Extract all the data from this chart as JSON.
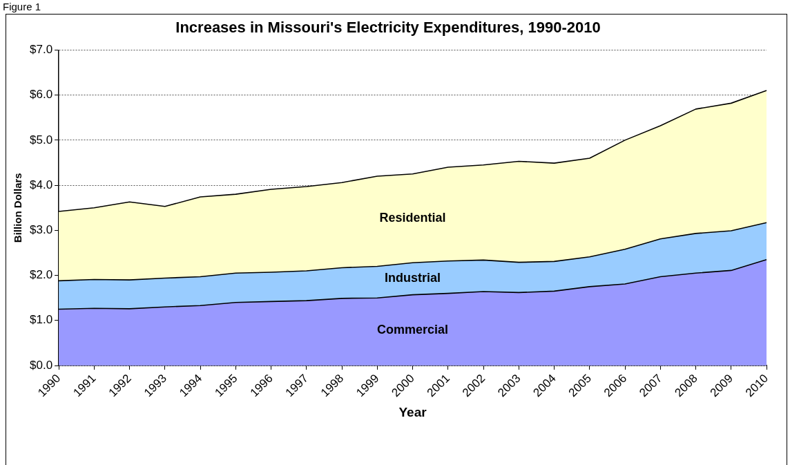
{
  "chart_data": {
    "type": "area",
    "stacked": true,
    "title": "Increases in Missouri's Electricity Expenditures, 1990-2010",
    "xlabel": "Year",
    "ylabel": "Billion Dollars",
    "annotations": [
      "Figure 1"
    ],
    "categories": [
      "1990",
      "1991",
      "1992",
      "1993",
      "1994",
      "1995",
      "1996",
      "1997",
      "1998",
      "1999",
      "2000",
      "2001",
      "2002",
      "2003",
      "2004",
      "2005",
      "2006",
      "2007",
      "2008",
      "2009",
      "2010"
    ],
    "series": [
      {
        "name": "Commercial",
        "color": "#9999ff",
        "values": [
          1.25,
          1.27,
          1.26,
          1.3,
          1.33,
          1.4,
          1.42,
          1.44,
          1.49,
          1.5,
          1.57,
          1.6,
          1.64,
          1.62,
          1.65,
          1.75,
          1.81,
          1.97,
          2.05,
          2.11,
          2.35
        ]
      },
      {
        "name": "Industrial",
        "color": "#99ccff",
        "values": [
          0.63,
          0.64,
          0.64,
          0.64,
          0.64,
          0.65,
          0.65,
          0.66,
          0.68,
          0.7,
          0.71,
          0.72,
          0.7,
          0.67,
          0.66,
          0.66,
          0.77,
          0.84,
          0.88,
          0.88,
          0.82
        ]
      },
      {
        "name": "Residential",
        "color": "#ffffcc",
        "values": [
          1.54,
          1.59,
          1.73,
          1.59,
          1.77,
          1.75,
          1.84,
          1.87,
          1.89,
          2.0,
          1.97,
          2.08,
          2.11,
          2.24,
          2.18,
          2.19,
          2.42,
          2.51,
          2.76,
          2.83,
          2.93
        ]
      }
    ],
    "ylim": [
      0,
      7
    ],
    "yticks": [
      {
        "value": 0,
        "label": "$0.0"
      },
      {
        "value": 1,
        "label": "$1.0"
      },
      {
        "value": 2,
        "label": "$2.0"
      },
      {
        "value": 3,
        "label": "$3.0"
      },
      {
        "value": 4,
        "label": "$4.0"
      },
      {
        "value": 5,
        "label": "$5.0"
      },
      {
        "value": 6,
        "label": "$6.0"
      },
      {
        "value": 7,
        "label": "$7.0"
      }
    ],
    "grid": "y",
    "legend": false
  }
}
